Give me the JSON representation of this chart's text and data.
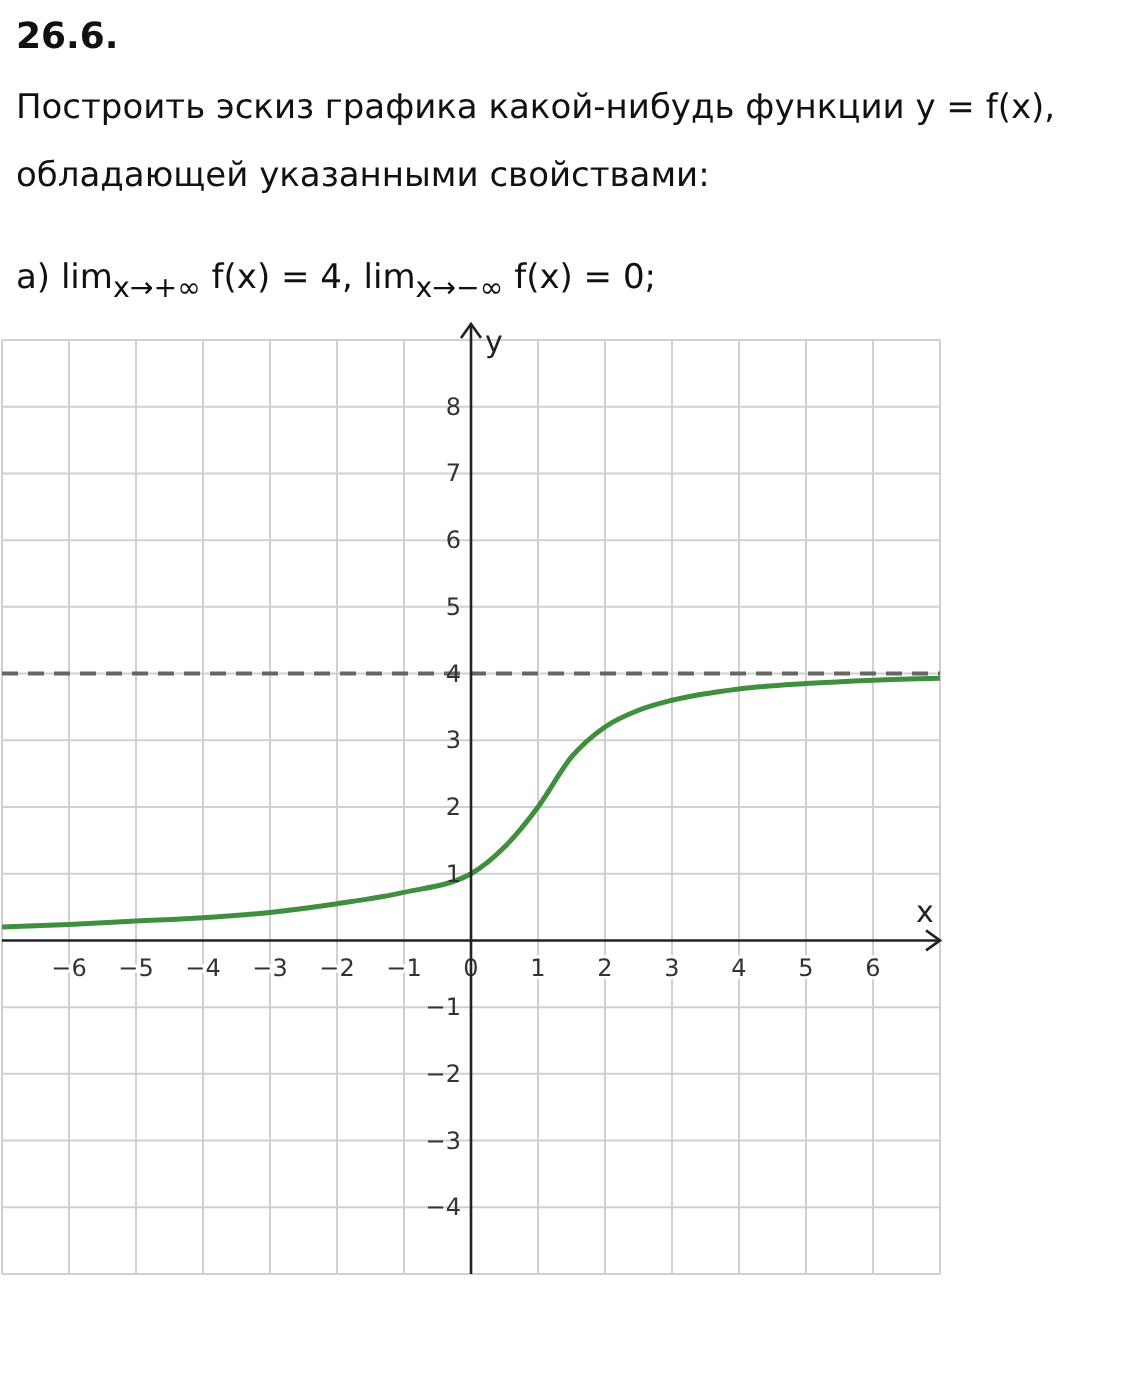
{
  "chart_data": {
    "type": "line",
    "title": "26.6.",
    "subtitle": "Построить эскиз графика какой-нибудь функции y = f(x), обладающей указанными свойствами:",
    "annotations": [
      "а) lim$_{x→+∞}$ f(x) = 4,  lim$_{x→−∞}$ f(x) = 0;"
    ],
    "xlabel": "x",
    "ylabel": "y",
    "series": [
      {
        "color": "#3f8f3f",
        "x": [
          -7,
          -6,
          -5,
          -4,
          -3,
          -2,
          -1,
          0,
          0.5,
          1,
          1.5,
          2,
          2.5,
          3,
          4,
          5,
          6,
          7
        ],
        "values": [
          0.2,
          0.24,
          0.29,
          0.34,
          0.42,
          0.55,
          0.72,
          1.0,
          1.4,
          2.0,
          2.75,
          3.2,
          3.45,
          3.6,
          3.77,
          3.85,
          3.9,
          3.93
        ]
      }
    ],
    "xlim": [
      -7,
      7
    ],
    "ylim": [
      -5,
      9
    ],
    "xticks": [
      -6,
      -5,
      -4,
      -3,
      -2,
      -1,
      0,
      1,
      2,
      3,
      4,
      5,
      6
    ],
    "yticks": [
      -4,
      -3,
      -2,
      -1,
      1,
      2,
      3,
      4,
      5,
      6,
      7,
      8
    ],
    "ref_lines": [
      {
        "axis": "y",
        "value": 4,
        "color": "#666666",
        "line_style": "dashed"
      }
    ],
    "grid": true,
    "legend": false,
    "marker": "none",
    "line_style": "solid"
  }
}
